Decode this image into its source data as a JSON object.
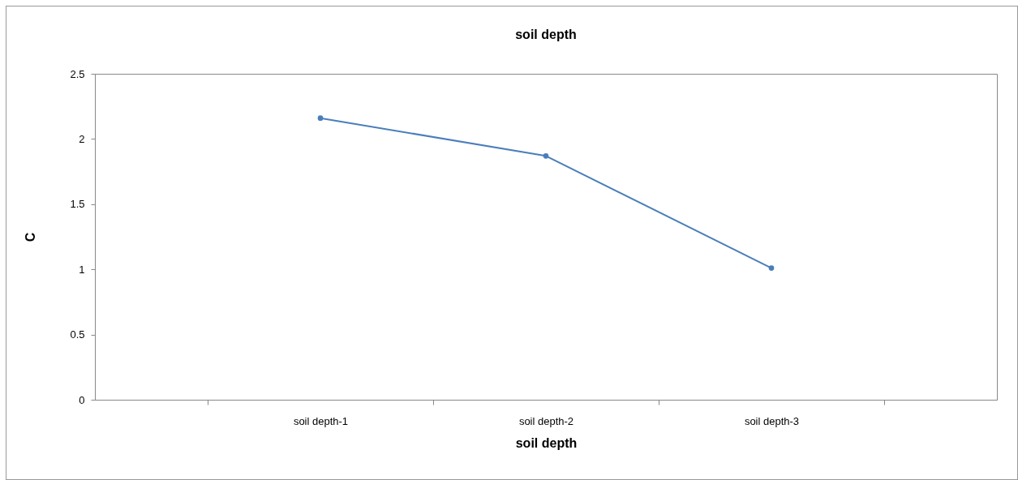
{
  "chart_data": {
    "type": "line",
    "title": "soil depth",
    "xlabel": "soil depth",
    "ylabel": "C",
    "categories": [
      "soil depth-1",
      "soil depth-2",
      "soil depth-3"
    ],
    "series": [
      {
        "color": "#4a7ebb",
        "values": [
          2.16,
          1.87,
          1.01
        ]
      }
    ],
    "ylim": [
      0,
      2.5
    ],
    "yticks": [
      0,
      0.5,
      1,
      1.5,
      2,
      2.5
    ],
    "grid": false,
    "legend": false,
    "marker": "circle",
    "line_style": "solid"
  }
}
